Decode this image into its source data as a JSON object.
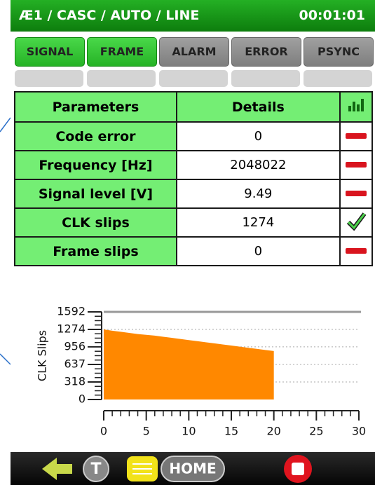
{
  "header": {
    "title": "Æ1 / CASC / AUTO / LINE",
    "time": "00:01:01"
  },
  "tabs": [
    "SIGNAL",
    "FRAME",
    "ALARM",
    "ERROR",
    "PSYNC"
  ],
  "table": {
    "header": [
      "Parameters",
      "Details"
    ],
    "rows": [
      [
        "Code error",
        "0"
      ],
      [
        "Frequency [Hz]",
        "2048022"
      ],
      [
        "Signal level [V]",
        "9.49"
      ],
      [
        "CLK  slips",
        "1274"
      ],
      [
        "Frame slips",
        "0"
      ]
    ]
  },
  "chart_data": {
    "type": "area",
    "ylabel": "CLK Slips",
    "x": [
      0,
      1,
      2,
      3,
      4,
      5,
      6,
      7,
      8,
      9,
      10,
      11,
      12,
      13,
      14,
      15,
      16,
      17,
      18,
      19,
      20
    ],
    "values": [
      1274,
      1250,
      1230,
      1210,
      1190,
      1175,
      1160,
      1140,
      1120,
      1100,
      1080,
      1060,
      1040,
      1020,
      1000,
      980,
      960,
      940,
      920,
      900,
      880
    ],
    "color": "#ff8800",
    "xlim": [
      0,
      30
    ],
    "ylim": [
      0,
      1592
    ],
    "xticks": [
      0,
      5,
      10,
      15,
      20,
      25,
      30
    ],
    "yticks": [
      0,
      318,
      637,
      956,
      1274,
      1592
    ],
    "grid": true
  },
  "toolbar": {
    "t": "T",
    "home": "HOME"
  }
}
